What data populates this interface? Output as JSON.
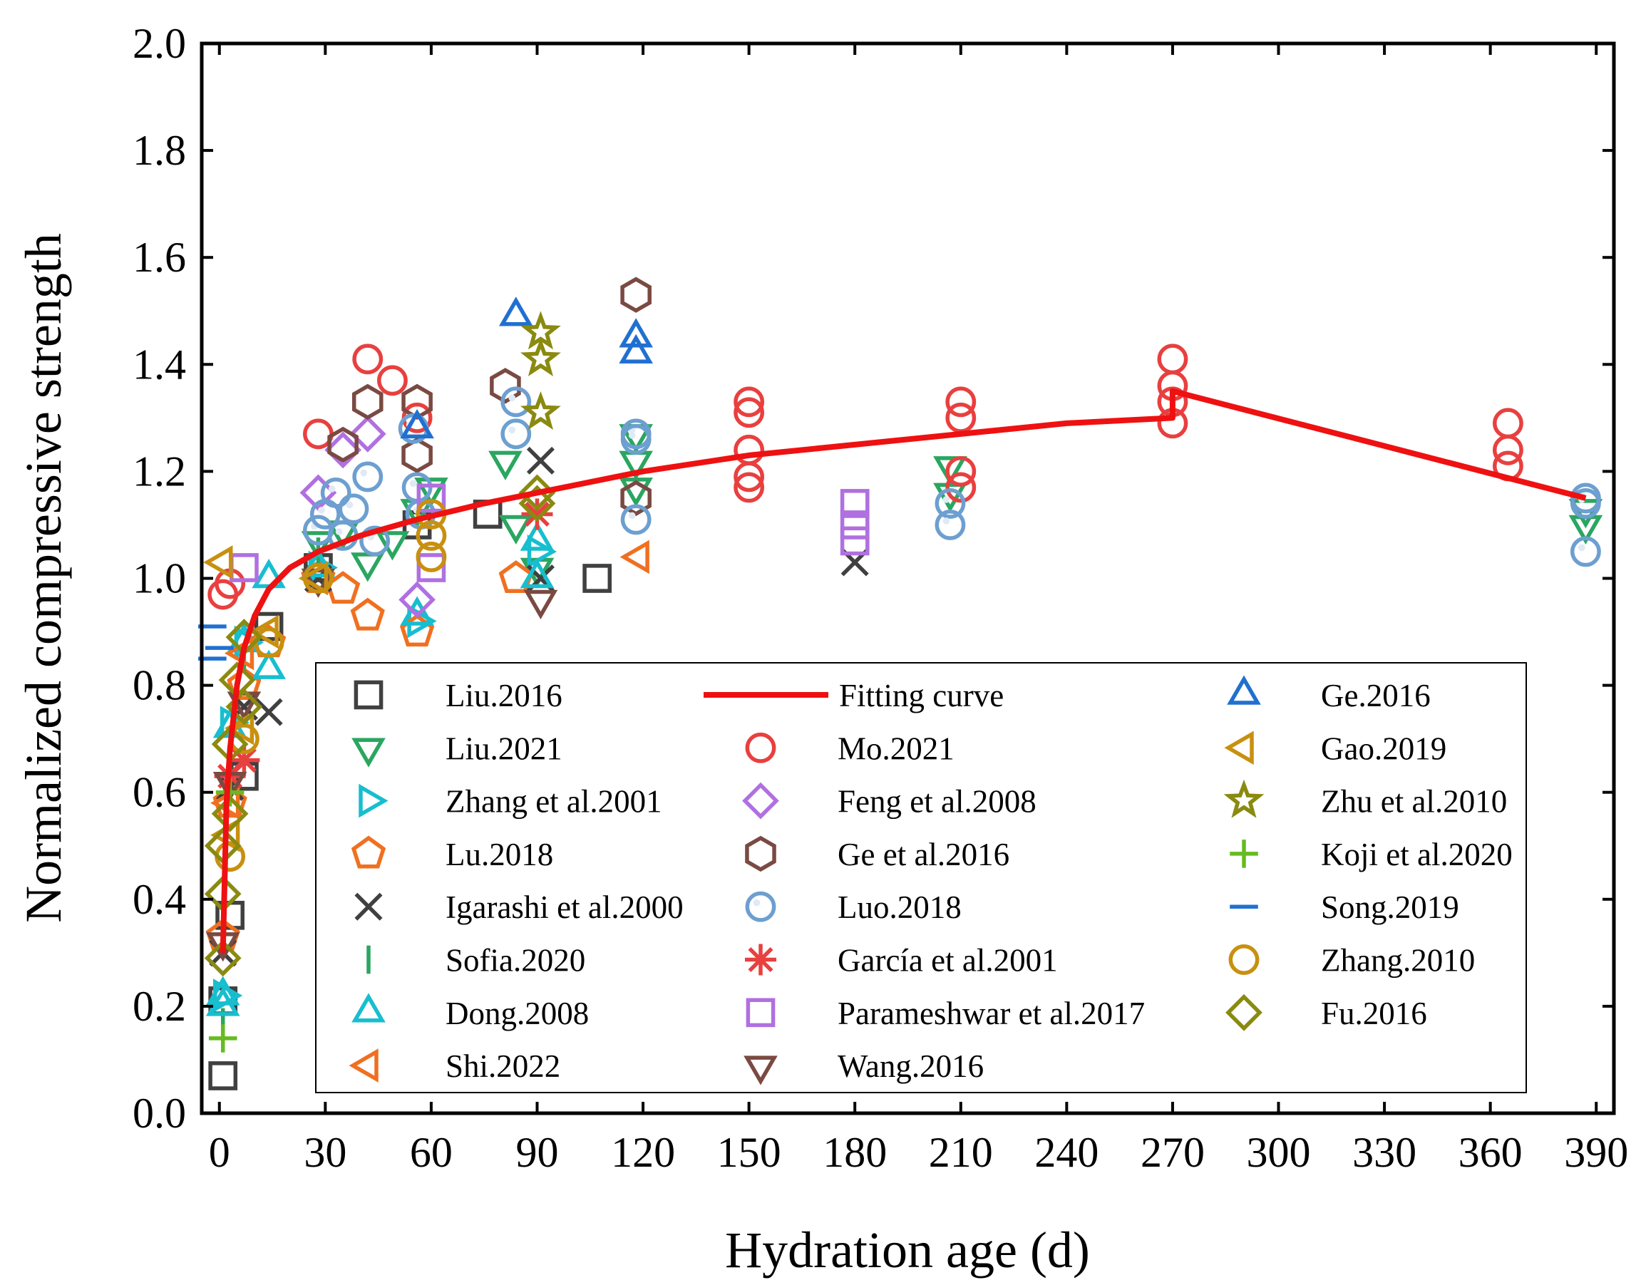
{
  "chart_data": {
    "type": "scatter",
    "xlabel": "Hydration age (d)",
    "ylabel": "Normalized compressive strength",
    "xlim": [
      -5,
      395
    ],
    "ylim": [
      0,
      2.0
    ],
    "x_ticks": [
      "0",
      "30",
      "60",
      "90",
      "120",
      "150",
      "180",
      "210",
      "240",
      "270",
      "300",
      "330",
      "360",
      "390"
    ],
    "y_ticks": [
      "0.0",
      "0.2",
      "0.4",
      "0.6",
      "0.8",
      "1.0",
      "1.2",
      "1.4",
      "1.6",
      "1.8",
      "2.0"
    ],
    "grid": false,
    "legend_position": "lower-right, inside plot",
    "series": [
      {
        "name": "Liu.2016",
        "marker": "square",
        "color": "#404040",
        "x": [
          1,
          1,
          3,
          7,
          14,
          28,
          56,
          76,
          107
        ],
        "y": [
          0.07,
          0.21,
          0.37,
          0.63,
          0.91,
          1.02,
          1.1,
          1.12,
          1.0
        ]
      },
      {
        "name": "Liu.2021",
        "marker": "triangle-down",
        "color": "#2aa660",
        "x": [
          28,
          35,
          42,
          49,
          56,
          60,
          81,
          84,
          90,
          118,
          118,
          118,
          207,
          207,
          387,
          387
        ],
        "y": [
          1.07,
          1.09,
          1.03,
          1.07,
          1.13,
          1.17,
          1.22,
          1.1,
          1.02,
          1.27,
          1.22,
          1.17,
          1.21,
          1.16,
          1.13,
          1.1
        ]
      },
      {
        "name": "Zhang et al.2001",
        "marker": "triangle-right",
        "color": "#17becf",
        "x": [
          1,
          3,
          7,
          28,
          56,
          90
        ],
        "y": [
          0.22,
          0.73,
          0.88,
          1.02,
          0.92,
          1.05
        ]
      },
      {
        "name": "Lu.2018",
        "marker": "pentagon",
        "color": "#f07020",
        "x": [
          1,
          3,
          7,
          14,
          28,
          35,
          42,
          56,
          84
        ],
        "y": [
          0.33,
          0.58,
          0.8,
          0.88,
          1.0,
          0.98,
          0.93,
          0.9,
          1.0
        ]
      },
      {
        "name": "Igarashi et al.2000",
        "marker": "x",
        "color": "#404040",
        "x": [
          1,
          3,
          7,
          14,
          28,
          91,
          91,
          180
        ],
        "y": [
          0.3,
          0.61,
          0.76,
          0.75,
          1.0,
          1.22,
          1.0,
          1.03
        ]
      },
      {
        "name": "Sofia.2020",
        "marker": "vline",
        "color": "#2aa660",
        "x": [
          1,
          3,
          7,
          28
        ],
        "y": [
          0.17,
          0.62,
          0.85,
          1.05
        ]
      },
      {
        "name": "Dong.2008",
        "marker": "triangle-up",
        "color": "#17becf",
        "x": [
          1,
          1,
          3,
          7,
          14,
          14,
          28,
          56,
          90,
          90
        ],
        "y": [
          0.2,
          0.22,
          0.72,
          0.88,
          1.0,
          0.83,
          1.02,
          0.93,
          1.0,
          1.07
        ]
      },
      {
        "name": "Shi.2022",
        "marker": "triangle-left",
        "color": "#f07020",
        "x": [
          3,
          7,
          28,
          119
        ],
        "y": [
          0.58,
          0.86,
          1.0,
          1.04
        ]
      },
      {
        "name": "Mo.2021",
        "marker": "circle",
        "color": "#e8403f",
        "x": [
          1,
          3,
          28,
          42,
          49,
          56,
          150,
          150,
          150,
          150,
          150,
          210,
          210,
          210,
          210,
          270,
          270,
          270,
          270,
          365,
          365,
          365
        ],
        "y": [
          0.97,
          0.99,
          1.27,
          1.41,
          1.37,
          1.3,
          1.33,
          1.31,
          1.24,
          1.19,
          1.17,
          1.33,
          1.3,
          1.2,
          1.17,
          1.41,
          1.36,
          1.33,
          1.29,
          1.29,
          1.24,
          1.21
        ]
      },
      {
        "name": "Feng et al.2008",
        "marker": "diamond",
        "color": "#b070e0",
        "x": [
          28,
          35,
          42,
          56
        ],
        "y": [
          1.16,
          1.24,
          1.27,
          0.96
        ]
      },
      {
        "name": "Ge et al.2016",
        "marker": "hexagon",
        "color": "#7a4a42",
        "x": [
          35,
          42,
          56,
          56,
          81,
          118,
          118
        ],
        "y": [
          1.25,
          1.33,
          1.33,
          1.23,
          1.36,
          1.53,
          1.15
        ]
      },
      {
        "name": "Luo.2018",
        "marker": "ring",
        "color": "#6d9fd0",
        "x": [
          28,
          30,
          33,
          35,
          38,
          42,
          44,
          55,
          56,
          57,
          84,
          84,
          118,
          118,
          118,
          207,
          207,
          387,
          387,
          387
        ],
        "y": [
          1.09,
          1.12,
          1.16,
          1.08,
          1.13,
          1.19,
          1.07,
          1.28,
          1.17,
          1.12,
          1.33,
          1.27,
          1.27,
          1.26,
          1.11,
          1.14,
          1.1,
          1.15,
          1.14,
          1.05
        ]
      },
      {
        "name": "García et al.2001",
        "marker": "asterisk",
        "color": "#e8403f",
        "x": [
          3,
          7,
          90
        ],
        "y": [
          0.63,
          0.66,
          1.12
        ]
      },
      {
        "name": "Parameshwar et al.2017",
        "marker": "square",
        "color": "#b070e0",
        "x": [
          7,
          60,
          60,
          180,
          180,
          180
        ],
        "y": [
          1.02,
          1.15,
          1.02,
          1.14,
          1.1,
          1.07
        ]
      },
      {
        "name": "Wang.2016",
        "marker": "triangle-down",
        "color": "#7a4a42",
        "x": [
          1,
          3,
          7,
          28,
          91
        ],
        "y": [
          0.32,
          0.62,
          0.77,
          1.0,
          0.96
        ]
      },
      {
        "name": "Ge.2016",
        "marker": "triangle-up",
        "color": "#2070d0",
        "x": [
          56,
          84,
          118,
          118
        ],
        "y": [
          1.28,
          1.49,
          1.45,
          1.42
        ]
      },
      {
        "name": "Gao.2019",
        "marker": "triangle-left",
        "color": "#c89010",
        "x": [
          1,
          3,
          7,
          14,
          28
        ],
        "y": [
          1.03,
          0.52,
          0.72,
          0.9,
          1.0
        ]
      },
      {
        "name": "Zhu et al.2010",
        "marker": "star",
        "color": "#8a8a10",
        "x": [
          91,
          91,
          91
        ],
        "y": [
          1.46,
          1.41,
          1.31
        ]
      },
      {
        "name": "Koji et al.2020",
        "marker": "plus",
        "color": "#66bb20",
        "x": [
          1,
          3
        ],
        "y": [
          0.14,
          0.6
        ]
      },
      {
        "name": "Song.2019",
        "marker": "hline",
        "color": "#2070d0",
        "x": [
          -2,
          -2,
          0
        ],
        "y": [
          0.91,
          0.85,
          0.87
        ]
      },
      {
        "name": "Zhang.2010",
        "marker": "circle",
        "color": "#c89010",
        "x": [
          3,
          7,
          14,
          28,
          60,
          60,
          60
        ],
        "y": [
          0.48,
          0.7,
          0.88,
          1.0,
          1.12,
          1.08,
          1.04
        ]
      },
      {
        "name": "Fu.2016",
        "marker": "diamond",
        "color": "#8a8a10",
        "x": [
          1,
          1,
          1,
          3,
          3,
          5,
          7,
          7,
          90,
          90
        ],
        "y": [
          0.29,
          0.41,
          0.5,
          0.56,
          0.69,
          0.81,
          0.76,
          0.89,
          1.16,
          1.14
        ]
      }
    ],
    "fitting_curve": {
      "name": "Fitting curve",
      "color": "#ee1111",
      "x": [
        1,
        2,
        3,
        5,
        7,
        10,
        14,
        20,
        28,
        40,
        56,
        75,
        90,
        120,
        150,
        180,
        210,
        240,
        270,
        270,
        387
      ],
      "y": [
        0.3,
        0.58,
        0.68,
        0.8,
        0.87,
        0.93,
        0.98,
        1.02,
        1.05,
        1.08,
        1.11,
        1.14,
        1.16,
        1.2,
        1.23,
        1.25,
        1.27,
        1.29,
        1.3,
        1.35,
        1.15
      ]
    }
  }
}
